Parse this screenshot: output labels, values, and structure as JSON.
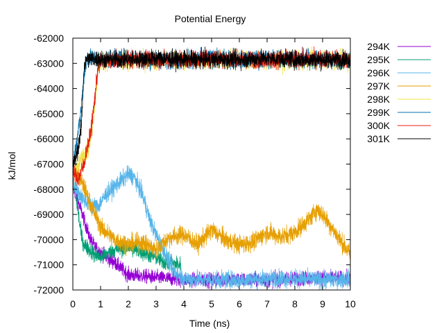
{
  "chart_data": {
    "type": "line",
    "title": "Potential Energy",
    "xlabel": "Time (ns)",
    "ylabel": "kJ/mol",
    "xlim": [
      0,
      10
    ],
    "ylim": [
      -72000,
      -62000
    ],
    "xticks": [
      "0",
      "1",
      "2",
      "3",
      "4",
      "5",
      "6",
      "7",
      "8",
      "9",
      "10"
    ],
    "yticks": [
      "-62000",
      "-63000",
      "-64000",
      "-65000",
      "-66000",
      "-67000",
      "-68000",
      "-69000",
      "-70000",
      "-71000",
      "-72000"
    ],
    "grid": false,
    "legend_position": "outside-right",
    "series": [
      {
        "name": "294K",
        "color": "#9400d3",
        "noise": 140,
        "x": [
          0,
          0.2,
          0.4,
          0.6,
          0.8,
          1.0,
          1.2,
          1.5,
          1.8,
          2.0,
          2.5,
          3.0,
          3.5,
          4.0,
          5.0,
          6.0,
          7.0,
          8.0,
          9.0,
          10.0
        ],
        "y": [
          -67900,
          -68500,
          -69200,
          -69900,
          -70300,
          -70500,
          -70700,
          -70900,
          -71200,
          -71400,
          -71450,
          -71500,
          -71550,
          -71600,
          -71600,
          -71600,
          -71600,
          -71550,
          -71500,
          -71550
        ]
      },
      {
        "name": "295K",
        "color": "#009e73",
        "noise": 160,
        "x": [
          0,
          0.1,
          0.2,
          0.3,
          0.4,
          0.6,
          0.8,
          1.0,
          1.5,
          2.0,
          2.5,
          3.0,
          3.3,
          3.6,
          3.9
        ],
        "y": [
          -67600,
          -68200,
          -69000,
          -69800,
          -70200,
          -70400,
          -70600,
          -70700,
          -70400,
          -70300,
          -70500,
          -70700,
          -70900,
          -70950,
          -71000
        ]
      },
      {
        "name": "296K",
        "color": "#56b4e9",
        "noise": 170,
        "x": [
          0,
          0.3,
          0.6,
          0.9,
          1.2,
          1.5,
          1.8,
          2.0,
          2.2,
          2.5,
          2.8,
          3.0,
          3.3,
          3.6,
          4.0,
          5.0,
          6.0,
          7.0,
          8.0,
          9.0,
          10.0
        ],
        "y": [
          -67800,
          -68300,
          -68600,
          -68700,
          -68200,
          -67900,
          -67600,
          -67400,
          -67500,
          -68200,
          -69300,
          -69800,
          -70500,
          -71200,
          -71550,
          -71600,
          -71600,
          -71550,
          -71550,
          -71600,
          -71550
        ]
      },
      {
        "name": "297K",
        "color": "#e69f00",
        "noise": 180,
        "x": [
          0,
          0.2,
          0.4,
          0.6,
          0.8,
          1.0,
          1.5,
          2.0,
          2.5,
          3.0,
          3.5,
          4.0,
          4.5,
          5.0,
          5.5,
          6.0,
          6.5,
          7.0,
          7.5,
          8.0,
          8.5,
          8.8,
          9.0,
          9.5,
          10.0
        ],
        "y": [
          -67200,
          -67500,
          -67900,
          -68500,
          -69000,
          -69500,
          -70000,
          -70200,
          -70100,
          -70400,
          -69900,
          -69800,
          -70200,
          -69600,
          -70000,
          -70200,
          -70100,
          -69700,
          -69900,
          -69700,
          -69200,
          -68800,
          -69000,
          -69800,
          -70600
        ]
      },
      {
        "name": "298K",
        "color": "#f0e442",
        "noise": 180,
        "x": [
          0,
          0.2,
          0.3,
          0.4,
          0.5,
          0.6,
          0.7,
          0.8,
          0.9,
          1.0,
          2.0,
          3.0,
          4.0,
          5.0,
          6.0,
          7.0,
          8.0,
          9.0,
          10.0
        ],
        "y": [
          -67400,
          -67100,
          -66800,
          -66600,
          -66500,
          -66200,
          -65500,
          -64500,
          -63300,
          -62900,
          -62900,
          -62900,
          -62850,
          -62900,
          -62850,
          -62900,
          -62900,
          -62850,
          -62900
        ]
      },
      {
        "name": "299K",
        "color": "#0072b2",
        "noise": 170,
        "x": [
          0,
          0.1,
          0.2,
          0.3,
          0.4,
          0.5,
          0.6,
          1.0,
          2.0,
          3.0,
          4.0,
          5.0,
          6.0,
          7.0,
          8.0,
          9.0,
          10.0
        ],
        "y": [
          -67200,
          -66300,
          -65700,
          -64800,
          -63500,
          -62850,
          -62800,
          -62850,
          -62800,
          -62850,
          -62850,
          -62800,
          -62850,
          -62850,
          -62800,
          -62850,
          -62850
        ]
      },
      {
        "name": "300K",
        "color": "#e51e10",
        "noise": 170,
        "x": [
          0,
          0.2,
          0.3,
          0.4,
          0.5,
          0.6,
          0.7,
          0.8,
          0.9,
          1.0,
          2.0,
          3.0,
          4.0,
          5.0,
          6.0,
          7.0,
          8.0,
          9.0,
          10.0
        ],
        "y": [
          -67300,
          -67600,
          -67300,
          -67000,
          -66400,
          -66000,
          -65300,
          -64300,
          -63200,
          -62900,
          -62850,
          -62850,
          -62850,
          -62800,
          -62850,
          -62850,
          -62850,
          -62800,
          -62850
        ]
      },
      {
        "name": "301K",
        "color": "#000000",
        "noise": 170,
        "x": [
          0,
          0.1,
          0.2,
          0.3,
          0.35,
          0.4,
          0.5,
          1.0,
          2.0,
          3.0,
          4.0,
          5.0,
          6.0,
          7.0,
          8.0,
          9.0,
          10.0
        ],
        "y": [
          -67000,
          -66800,
          -66300,
          -65600,
          -64500,
          -63200,
          -62800,
          -62850,
          -62850,
          -62800,
          -62850,
          -62850,
          -62850,
          -62800,
          -62850,
          -62850,
          -62850
        ]
      }
    ]
  }
}
